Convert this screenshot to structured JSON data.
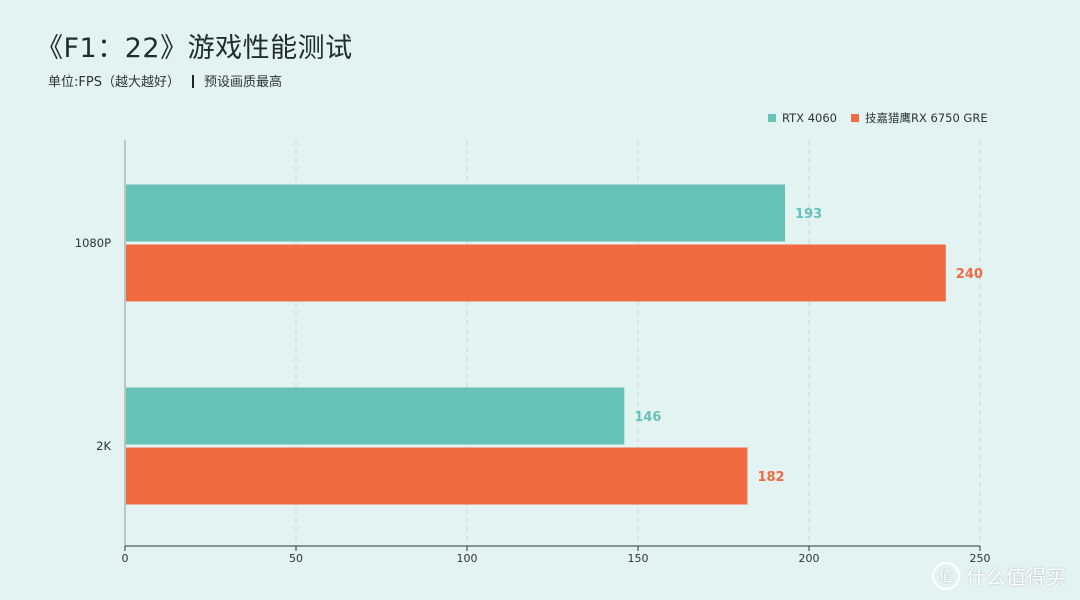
{
  "title": "《F1：22》游戏性能测试",
  "subtitle": {
    "unit": "单位:FPS（越大越好）",
    "note": "预设画质最高"
  },
  "watermark": {
    "logo_glyph": "值",
    "text": "什么值得买"
  },
  "colors": {
    "series1": "#66c2b7",
    "series2": "#f06a42",
    "background": "#e3f3f1"
  },
  "chart_data": {
    "type": "bar",
    "orientation": "horizontal",
    "categories": [
      "1080P",
      "2K"
    ],
    "series": [
      {
        "name": "RTX 4060",
        "values": [
          193,
          146
        ]
      },
      {
        "name": "技嘉猎鹰RX 6750 GRE",
        "values": [
          240,
          182
        ]
      }
    ],
    "xlim": [
      0,
      250
    ],
    "xticks": [
      0,
      50,
      100,
      150,
      200,
      250
    ],
    "grid": true,
    "legend_position": "top-right"
  }
}
